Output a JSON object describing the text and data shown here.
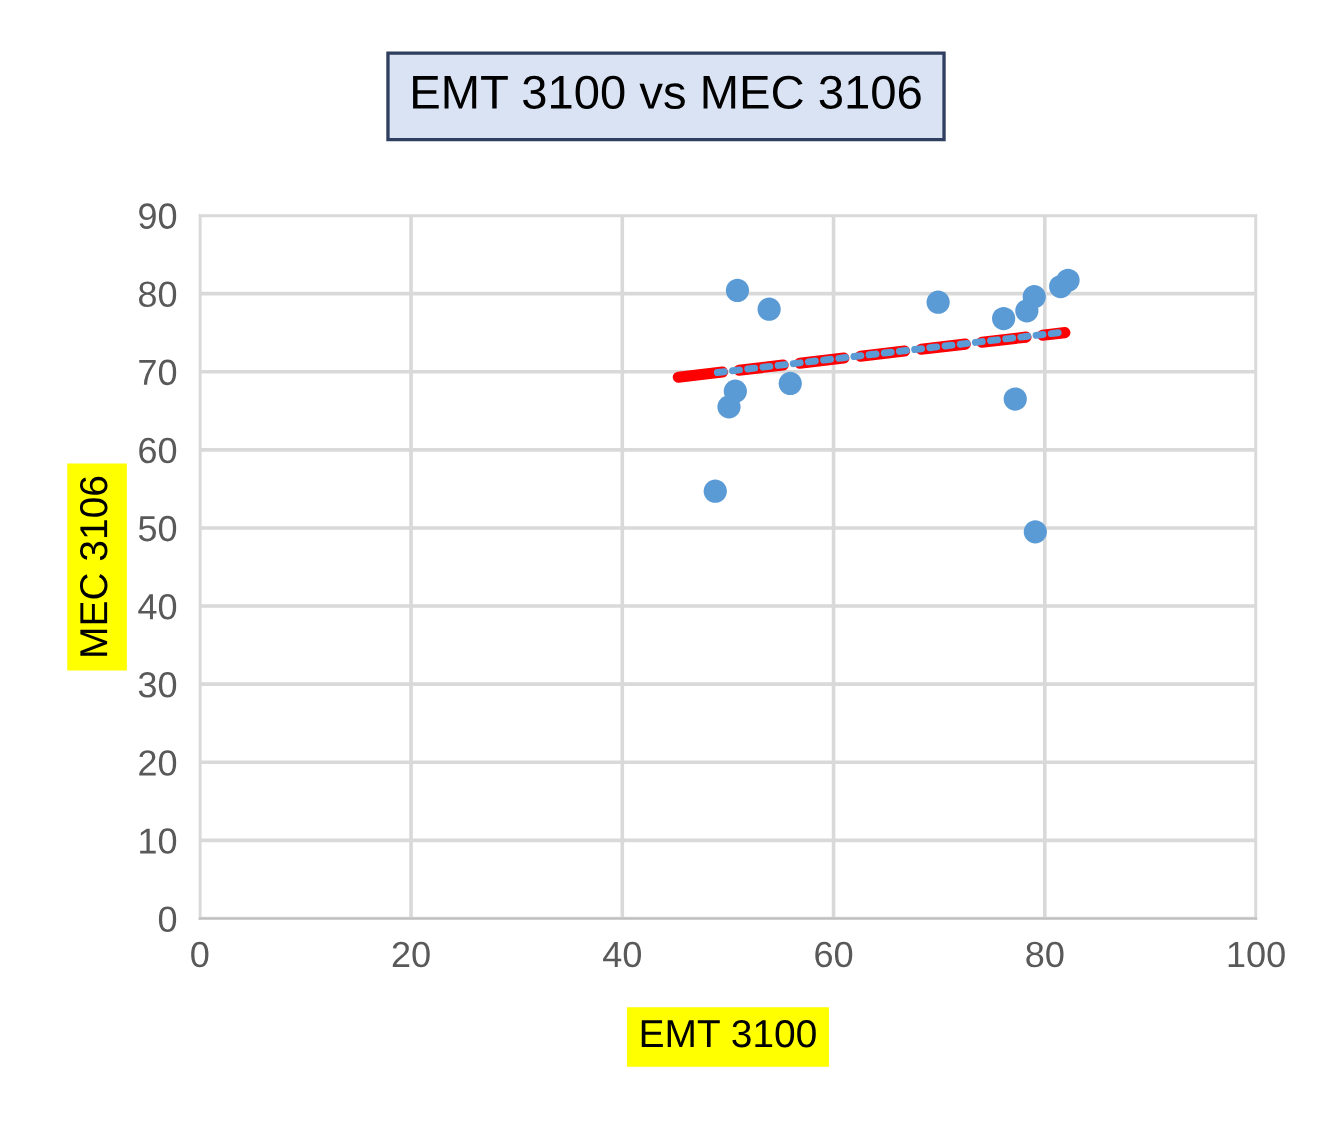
{
  "chart_data": {
    "type": "scatter",
    "title": "EMT 3100 vs MEC 3106",
    "xlabel": "EMT 3100",
    "ylabel": "MEC 3106",
    "xlim": [
      0,
      100
    ],
    "xticks": [
      0,
      20,
      40,
      60,
      80,
      100
    ],
    "ylim": [
      0,
      90
    ],
    "yticks": [
      0,
      10,
      20,
      30,
      40,
      50,
      60,
      70,
      80,
      90
    ],
    "grid": true,
    "series": [
      {
        "type": "scatter",
        "marker": "circle",
        "color": "#5b9bd5",
        "x": [
          50.9,
          53.9,
          69.9,
          76.1,
          78.3,
          79.0,
          81.5,
          82.2,
          50.7,
          50.1,
          55.9,
          77.2,
          48.8,
          79.1
        ],
        "values": [
          80.4,
          78.0,
          78.9,
          76.8,
          77.8,
          79.6,
          80.9,
          81.7,
          67.5,
          65.5,
          68.5,
          66.5,
          54.7,
          49.5
        ]
      },
      {
        "type": "line",
        "marker": "none",
        "color": "#5b9bd5",
        "line_style": "dotted",
        "x": [
          49,
          82
        ],
        "values": [
          69.9,
          75.1
        ]
      },
      {
        "type": "line",
        "marker": "none",
        "color": "#ff0000",
        "line_style": "dashed",
        "x": [
          45.3,
          81.9
        ],
        "values": [
          69.3,
          75.0
        ]
      }
    ]
  }
}
